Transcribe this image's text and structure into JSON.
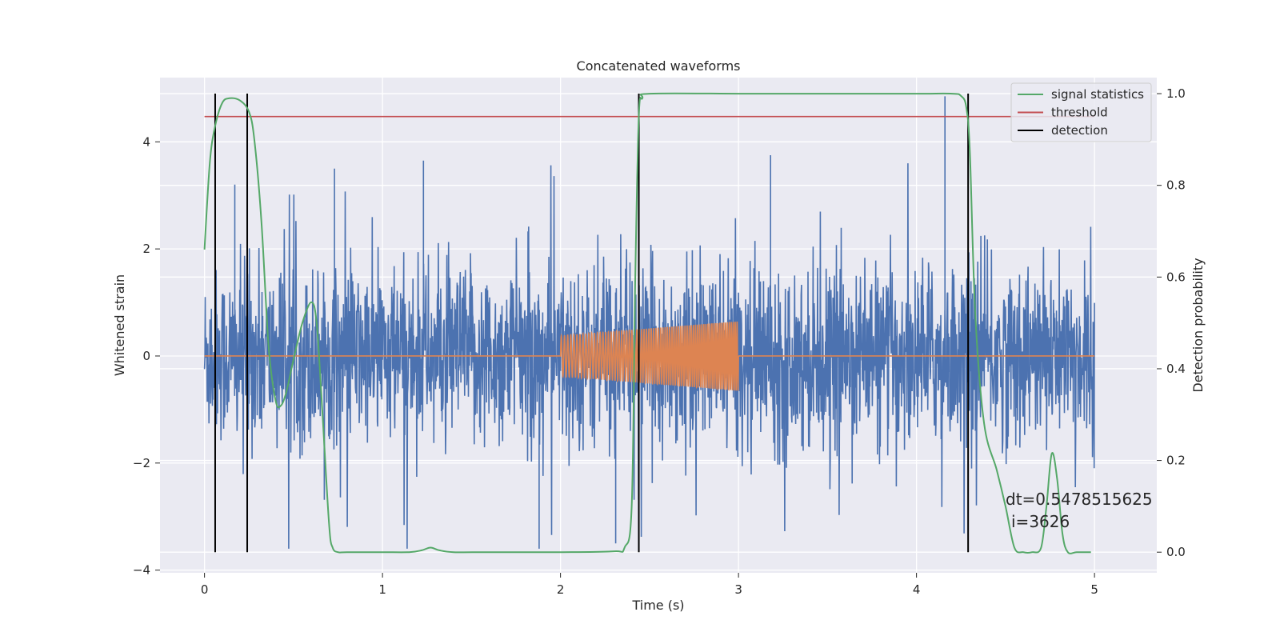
{
  "chart_data": {
    "type": "line",
    "title": "Concatenated waveforms",
    "xlabel": "Time (s)",
    "ylabel_left": "Whitened strain",
    "ylabel_right": "Detection probability",
    "xlim": [
      -0.25,
      5.35
    ],
    "ylim_left": [
      -4.05,
      5.2
    ],
    "ylim_right": [
      -0.045,
      1.035
    ],
    "grid": true,
    "legend_placement": "top-right",
    "x_ticks": [
      "0",
      "1",
      "2",
      "3",
      "4",
      "5"
    ],
    "x_tick_values": [
      0,
      1,
      2,
      3,
      4,
      5
    ],
    "y_left_ticks": [
      "−4",
      "−2",
      "0",
      "2",
      "4"
    ],
    "y_left_tick_values": [
      -4,
      -2,
      0,
      2,
      4
    ],
    "y_right_ticks": [
      "0.0",
      "0.2",
      "0.4",
      "0.6",
      "0.8",
      "1.0"
    ],
    "y_right_tick_values": [
      0.0,
      0.2,
      0.4,
      0.6,
      0.8,
      1.0
    ],
    "series": [
      {
        "name": "",
        "axis": "left",
        "color": "#4c72b0",
        "description": "whitened strain noise",
        "x_range": [
          0,
          5
        ],
        "spread": 1.1
      },
      {
        "name": "",
        "axis": "left",
        "color": "#dd8452",
        "description": "injected waveform",
        "x_range": [
          0,
          5
        ],
        "chirp_x": [
          2.0,
          3.0
        ],
        "chirp_amplitude": [
          0.38,
          0.65
        ]
      },
      {
        "name": "signal statistics",
        "axis": "right",
        "color": "#55a868",
        "x": [
          0,
          0.03,
          0.06,
          0.1,
          0.14,
          0.2,
          0.25,
          0.28,
          0.32,
          0.36,
          0.4,
          0.43,
          0.46,
          0.5,
          0.55,
          0.6,
          0.63,
          0.66,
          0.7,
          0.72,
          0.75,
          0.8,
          1.0,
          1.15,
          1.22,
          1.27,
          1.32,
          1.4,
          1.6,
          2.0,
          2.3,
          2.36,
          2.4,
          2.42,
          2.44,
          2.46,
          2.5,
          3.0,
          3.5,
          4.0,
          4.2,
          4.25,
          4.28,
          4.3,
          4.33,
          4.38,
          4.45,
          4.5,
          4.55,
          4.6,
          4.65,
          4.7,
          4.73,
          4.76,
          4.79,
          4.82,
          4.85,
          4.9,
          4.98
        ],
        "y": [
          0.66,
          0.85,
          0.93,
          0.98,
          0.99,
          0.985,
          0.96,
          0.9,
          0.72,
          0.45,
          0.33,
          0.32,
          0.35,
          0.42,
          0.5,
          0.545,
          0.5,
          0.32,
          0.06,
          0.01,
          0.0,
          0.0,
          0.0,
          0.0,
          0.004,
          0.01,
          0.004,
          0.0,
          0.0,
          0.0,
          0.002,
          0.01,
          0.1,
          0.6,
          0.95,
          0.99,
          1.0,
          1.0,
          1.0,
          1.0,
          1.0,
          0.995,
          0.97,
          0.87,
          0.52,
          0.28,
          0.18,
          0.1,
          0.01,
          0.0,
          0.0,
          0.01,
          0.1,
          0.215,
          0.16,
          0.04,
          0.0,
          0.0,
          0.0
        ]
      },
      {
        "name": "threshold",
        "axis": "right",
        "color": "#c44e52",
        "x": [
          0,
          5
        ],
        "y": [
          0.95,
          0.95
        ]
      },
      {
        "name": "detection",
        "axis": "right",
        "color": "#000000",
        "x": [
          0.06,
          0.24,
          2.44,
          4.29
        ],
        "y_range": [
          0.0,
          1.0
        ]
      }
    ],
    "annotation": {
      "line1": "dt=0.5478515625",
      "line2": "i=3626"
    }
  },
  "colors": {
    "axes_background": "#eaeaf2",
    "grid": "#ffffff",
    "text": "#262626"
  }
}
